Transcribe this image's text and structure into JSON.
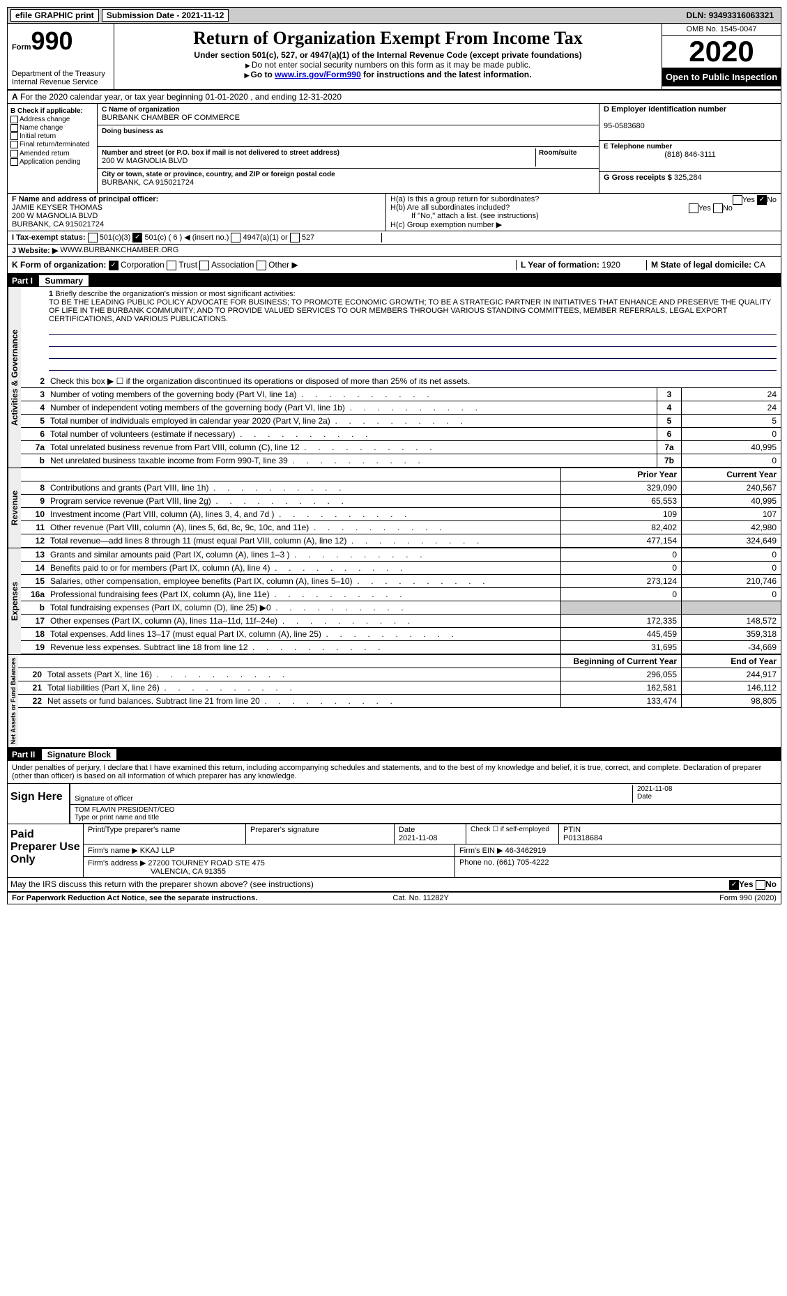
{
  "topbar": {
    "efile": "efile GRAPHIC print",
    "submission": "Submission Date - 2021-11-12",
    "dln_label": "DLN:",
    "dln": "93493316063321"
  },
  "header": {
    "form": "Form",
    "num": "990",
    "dept": "Department of the Treasury\nInternal Revenue Service",
    "title": "Return of Organization Exempt From Income Tax",
    "subtitle": "Under section 501(c), 527, or 4947(a)(1) of the Internal Revenue Code (except private foundations)",
    "note1": "Do not enter social security numbers on this form as it may be made public.",
    "note2_a": "Go to ",
    "note2_link": "www.irs.gov/Form990",
    "note2_b": " for instructions and the latest information.",
    "omb": "OMB No. 1545-0047",
    "year": "2020",
    "open": "Open to Public Inspection"
  },
  "sectionA": "For the 2020 calendar year, or tax year beginning 01-01-2020    , and ending 12-31-2020",
  "boxB": {
    "title": "B Check if applicable:",
    "items": [
      "Address change",
      "Name change",
      "Initial return",
      "Final return/terminated",
      "Amended return",
      "Application pending"
    ]
  },
  "boxC": {
    "name_label": "C Name of organization",
    "name": "BURBANK CHAMBER OF COMMERCE",
    "dba_label": "Doing business as",
    "addr_label": "Number and street (or P.O. box if mail is not delivered to street address)",
    "addr": "200 W MAGNOLIA BLVD",
    "room_label": "Room/suite",
    "city_label": "City or town, state or province, country, and ZIP or foreign postal code",
    "city": "BURBANK, CA  915021724"
  },
  "boxD": {
    "label": "D Employer identification number",
    "val": "95-0583680"
  },
  "boxE": {
    "label": "E Telephone number",
    "val": "(818) 846-3111"
  },
  "boxG": {
    "label": "G Gross receipts $",
    "val": "325,284"
  },
  "boxF": {
    "label": "F Name and address of principal officer:",
    "name": "JAMIE KEYSER THOMAS",
    "addr1": "200 W MAGNOLIA BLVD",
    "addr2": "BURBANK, CA  915021724"
  },
  "boxH": {
    "ha": "H(a)  Is this a group return for subordinates?",
    "hb": "H(b)  Are all subordinates included?",
    "hb_note": "If \"No,\" attach a list. (see instructions)",
    "hc": "H(c)  Group exemption number ▶",
    "yes": "Yes",
    "no": "No"
  },
  "boxI": {
    "label": "I  Tax-exempt status:",
    "opts": [
      "501(c)(3)",
      "501(c) ( 6 ) ◀ (insert no.)",
      "4947(a)(1) or",
      "527"
    ]
  },
  "boxJ": {
    "label": "J  Website: ▶",
    "val": "WWW.BURBANKCHAMBER.ORG"
  },
  "boxK": {
    "label": "K Form of organization:",
    "opts": [
      "Corporation",
      "Trust",
      "Association",
      "Other ▶"
    ]
  },
  "boxL": {
    "label": "L Year of formation:",
    "val": "1920"
  },
  "boxM": {
    "label": "M State of legal domicile:",
    "val": "CA"
  },
  "part1": {
    "header": "Part I",
    "title": "Summary"
  },
  "mission": {
    "q": "Briefly describe the organization's mission or most significant activities:",
    "text": "TO BE THE LEADING PUBLIC POLICY ADVOCATE FOR BUSINESS; TO PROMOTE ECONOMIC GROWTH; TO BE A STRATEGIC PARTNER IN INITIATIVES THAT ENHANCE AND PRESERVE THE QUALITY OF LIFE IN THE BURBANK COMMUNITY; AND TO PROVIDE VALUED SERVICES TO OUR MEMBERS THROUGH VARIOUS STANDING COMMITTEES, MEMBER REFERRALS, LEGAL EXPORT CERTIFICATIONS, AND VARIOUS PUBLICATIONS."
  },
  "line2": "Check this box ▶ ☐  if the organization discontinued its operations or disposed of more than 25% of its net assets.",
  "lines_gov": [
    {
      "n": "3",
      "d": "Number of voting members of the governing body (Part VI, line 1a)",
      "b": "3",
      "v": "24"
    },
    {
      "n": "4",
      "d": "Number of independent voting members of the governing body (Part VI, line 1b)",
      "b": "4",
      "v": "24"
    },
    {
      "n": "5",
      "d": "Total number of individuals employed in calendar year 2020 (Part V, line 2a)",
      "b": "5",
      "v": "5"
    },
    {
      "n": "6",
      "d": "Total number of volunteers (estimate if necessary)",
      "b": "6",
      "v": "0"
    },
    {
      "n": "7a",
      "d": "Total unrelated business revenue from Part VIII, column (C), line 12",
      "b": "7a",
      "v": "40,995"
    },
    {
      "n": "b",
      "d": "Net unrelated business taxable income from Form 990-T, line 39",
      "b": "7b",
      "v": "0"
    }
  ],
  "col_headers": {
    "prior": "Prior Year",
    "current": "Current Year"
  },
  "lines_rev": [
    {
      "n": "8",
      "d": "Contributions and grants (Part VIII, line 1h)",
      "p": "329,090",
      "c": "240,567"
    },
    {
      "n": "9",
      "d": "Program service revenue (Part VIII, line 2g)",
      "p": "65,553",
      "c": "40,995"
    },
    {
      "n": "10",
      "d": "Investment income (Part VIII, column (A), lines 3, 4, and 7d )",
      "p": "109",
      "c": "107"
    },
    {
      "n": "11",
      "d": "Other revenue (Part VIII, column (A), lines 5, 6d, 8c, 9c, 10c, and 11e)",
      "p": "82,402",
      "c": "42,980"
    },
    {
      "n": "12",
      "d": "Total revenue—add lines 8 through 11 (must equal Part VIII, column (A), line 12)",
      "p": "477,154",
      "c": "324,649"
    }
  ],
  "lines_exp": [
    {
      "n": "13",
      "d": "Grants and similar amounts paid (Part IX, column (A), lines 1–3 )",
      "p": "0",
      "c": "0"
    },
    {
      "n": "14",
      "d": "Benefits paid to or for members (Part IX, column (A), line 4)",
      "p": "0",
      "c": "0"
    },
    {
      "n": "15",
      "d": "Salaries, other compensation, employee benefits (Part IX, column (A), lines 5–10)",
      "p": "273,124",
      "c": "210,746"
    },
    {
      "n": "16a",
      "d": "Professional fundraising fees (Part IX, column (A), line 11e)",
      "p": "0",
      "c": "0"
    },
    {
      "n": "b",
      "d": "Total fundraising expenses (Part IX, column (D), line 25) ▶0",
      "p": "",
      "c": "",
      "gray": true
    },
    {
      "n": "17",
      "d": "Other expenses (Part IX, column (A), lines 11a–11d, 11f–24e)",
      "p": "172,335",
      "c": "148,572"
    },
    {
      "n": "18",
      "d": "Total expenses. Add lines 13–17 (must equal Part IX, column (A), line 25)",
      "p": "445,459",
      "c": "359,318"
    },
    {
      "n": "19",
      "d": "Revenue less expenses. Subtract line 18 from line 12",
      "p": "31,695",
      "c": "-34,669"
    }
  ],
  "col_headers2": {
    "beg": "Beginning of Current Year",
    "end": "End of Year"
  },
  "lines_net": [
    {
      "n": "20",
      "d": "Total assets (Part X, line 16)",
      "p": "296,055",
      "c": "244,917"
    },
    {
      "n": "21",
      "d": "Total liabilities (Part X, line 26)",
      "p": "162,581",
      "c": "146,112"
    },
    {
      "n": "22",
      "d": "Net assets or fund balances. Subtract line 21 from line 20",
      "p": "133,474",
      "c": "98,805"
    }
  ],
  "verts": {
    "gov": "Activities & Governance",
    "rev": "Revenue",
    "exp": "Expenses",
    "net": "Net Assets or Fund Balances"
  },
  "part2": {
    "header": "Part II",
    "title": "Signature Block"
  },
  "perjury": "Under penalties of perjury, I declare that I have examined this return, including accompanying schedules and statements, and to the best of my knowledge and belief, it is true, correct, and complete. Declaration of preparer (other than officer) is based on all information of which preparer has any knowledge.",
  "sign": {
    "label": "Sign Here",
    "sig_label": "Signature of officer",
    "date_label": "Date",
    "date": "2021-11-08",
    "name": "TOM FLAVIN  PRESIDENT/CEO",
    "name_label": "Type or print name and title"
  },
  "paid": {
    "label": "Paid Preparer Use Only",
    "h1": "Print/Type preparer's name",
    "h2": "Preparer's signature",
    "h3_label": "Date",
    "h3": "2021-11-08",
    "h4": "Check ☐ if self-employed",
    "h5_label": "PTIN",
    "h5": "P01318684",
    "firm_label": "Firm's name    ▶",
    "firm": "KKAJ LLP",
    "ein_label": "Firm's EIN ▶",
    "ein": "46-3462919",
    "addr_label": "Firm's address ▶",
    "addr1": "27200 TOURNEY ROAD STE 475",
    "addr2": "VALENCIA, CA  91355",
    "phone_label": "Phone no.",
    "phone": "(661) 705-4222"
  },
  "discuss": "May the IRS discuss this return with the preparer shown above? (see instructions)",
  "footer": {
    "left": "For Paperwork Reduction Act Notice, see the separate instructions.",
    "mid": "Cat. No. 11282Y",
    "right": "Form 990 (2020)"
  }
}
